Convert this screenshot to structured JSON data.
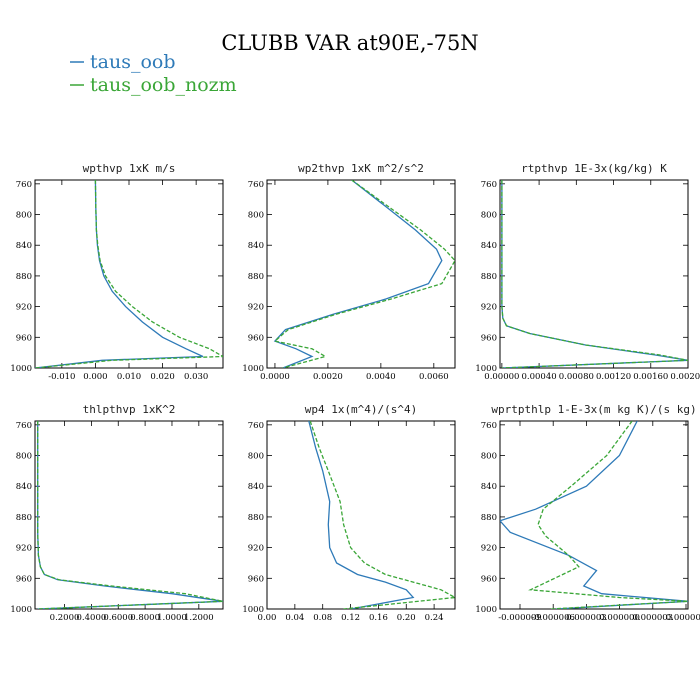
{
  "figure_title": "CLUBB VAR at90E,-75N",
  "legend": [
    {
      "label": "taus_oob",
      "color": "#2e7ab8"
    },
    {
      "label": "taus_oob_nozm",
      "color": "#3aa637"
    }
  ],
  "chart_data": [
    {
      "type": "line",
      "title": "wpthvp  1xK m/s",
      "xticks": [
        "-0.010",
        "0.000",
        "0.010",
        "0.020",
        "0.030"
      ],
      "yticks": [
        "760",
        "800",
        "840",
        "880",
        "920",
        "960",
        "1000"
      ],
      "xlim": [
        -0.018,
        0.038
      ],
      "ylim": [
        1000,
        755
      ],
      "series": [
        {
          "name": "taus_oob",
          "style": "solid",
          "x": [
            0.0,
            0.0001,
            0.0003,
            0.0006,
            0.0012,
            0.0025,
            0.005,
            0.009,
            0.014,
            0.02,
            0.027,
            0.032,
            0.002,
            -0.018
          ],
          "y": [
            755,
            790,
            820,
            840,
            860,
            880,
            900,
            920,
            940,
            960,
            975,
            985,
            990,
            1000
          ]
        },
        {
          "name": "taus_oob_nozm",
          "style": "dashed",
          "x": [
            0.0,
            0.0001,
            0.0003,
            0.0007,
            0.0014,
            0.003,
            0.006,
            0.011,
            0.017,
            0.025,
            0.034,
            0.038,
            0.005,
            -0.018
          ],
          "y": [
            755,
            790,
            820,
            840,
            860,
            880,
            900,
            920,
            940,
            960,
            975,
            985,
            990,
            1000
          ]
        }
      ]
    },
    {
      "type": "line",
      "title": "wp2thvp  1xK m^2/s^2",
      "xticks": [
        "0.0000",
        "0.0020",
        "0.0040",
        "0.0060"
      ],
      "yticks": [
        "760",
        "800",
        "840",
        "880",
        "920",
        "960",
        "1000"
      ],
      "xlim": [
        -0.0003,
        0.0068
      ],
      "ylim": [
        1000,
        755
      ],
      "series": [
        {
          "name": "taus_oob",
          "style": "solid",
          "x": [
            0.0029,
            0.0042,
            0.0053,
            0.0061,
            0.0063,
            0.0058,
            0.0042,
            0.0022,
            0.0004,
            0.0,
            0.0008,
            0.0014,
            0.0003
          ],
          "y": [
            755,
            790,
            820,
            845,
            860,
            890,
            910,
            930,
            950,
            965,
            975,
            985,
            1000
          ]
        },
        {
          "name": "taus_oob_nozm",
          "style": "dashed",
          "x": [
            0.0029,
            0.0043,
            0.0055,
            0.0064,
            0.0068,
            0.0063,
            0.0044,
            0.0023,
            0.0005,
            0.0,
            0.0014,
            0.0019,
            0.0003
          ],
          "y": [
            755,
            790,
            820,
            845,
            860,
            890,
            910,
            930,
            950,
            965,
            975,
            985,
            1000
          ]
        }
      ]
    },
    {
      "type": "line",
      "title": "rtpthvp  1E-3x(kg/kg) K",
      "xticks": [
        "0.00000",
        "0.00040",
        "0.00080",
        "0.00120",
        "0.00160",
        "0.00200"
      ],
      "yticks": [
        "760",
        "800",
        "840",
        "880",
        "920",
        "960",
        "1000"
      ],
      "xlim": [
        -2e-05,
        0.002
      ],
      "ylim": [
        1000,
        755
      ],
      "series": [
        {
          "name": "taus_oob",
          "style": "solid",
          "x": [
            0.0,
            0.0,
            0.0,
            0.0,
            0.0,
            1e-05,
            5e-05,
            0.0003,
            0.0009,
            0.00165,
            0.002,
            0.0
          ],
          "y": [
            755,
            800,
            850,
            900,
            920,
            935,
            945,
            955,
            970,
            983,
            990,
            1000
          ]
        },
        {
          "name": "taus_oob_nozm",
          "style": "dashed",
          "x": [
            0.0,
            0.0,
            0.0,
            0.0,
            0.0,
            1e-05,
            5e-05,
            0.0003,
            0.0009,
            0.0017,
            0.002,
            0.0
          ],
          "y": [
            755,
            800,
            850,
            900,
            920,
            935,
            945,
            955,
            970,
            983,
            990,
            1000
          ]
        }
      ]
    },
    {
      "type": "line",
      "title": "thlpthvp  1xK^2",
      "xticks": [
        "0.2000",
        "0.4000",
        "0.6000",
        "0.8000",
        "1.0000",
        "1.2000"
      ],
      "yticks": [
        "760",
        "800",
        "840",
        "880",
        "920",
        "960",
        "1000"
      ],
      "xlim": [
        -0.02,
        1.38
      ],
      "ylim": [
        1000,
        755
      ],
      "series": [
        {
          "name": "taus_oob",
          "style": "solid",
          "x": [
            0.0,
            0.0,
            0.0,
            0.005,
            0.02,
            0.05,
            0.15,
            0.5,
            1.0,
            1.38,
            0.0
          ],
          "y": [
            755,
            850,
            900,
            930,
            945,
            955,
            962,
            970,
            980,
            990,
            1000
          ]
        },
        {
          "name": "taus_oob_nozm",
          "style": "dashed",
          "x": [
            0.0,
            0.0,
            0.0,
            0.005,
            0.02,
            0.05,
            0.16,
            0.55,
            1.1,
            1.38,
            0.0
          ],
          "y": [
            755,
            850,
            900,
            930,
            945,
            955,
            962,
            970,
            980,
            990,
            1000
          ]
        }
      ]
    },
    {
      "type": "line",
      "title": "wp4  1x(m^4)/(s^4)",
      "xticks": [
        "0.00",
        "0.04",
        "0.08",
        "0.12",
        "0.16",
        "0.20",
        "0.24"
      ],
      "yticks": [
        "760",
        "800",
        "840",
        "880",
        "920",
        "960",
        "1000"
      ],
      "xlim": [
        0.0,
        0.27
      ],
      "ylim": [
        1000,
        755
      ],
      "series": [
        {
          "name": "taus_oob",
          "style": "solid",
          "x": [
            0.06,
            0.07,
            0.08,
            0.09,
            0.088,
            0.09,
            0.1,
            0.13,
            0.17,
            0.2,
            0.21,
            0.12
          ],
          "y": [
            755,
            790,
            820,
            860,
            890,
            920,
            940,
            955,
            965,
            975,
            985,
            1000
          ]
        },
        {
          "name": "taus_oob_nozm",
          "style": "dashed",
          "x": [
            0.062,
            0.075,
            0.088,
            0.105,
            0.11,
            0.12,
            0.14,
            0.17,
            0.21,
            0.25,
            0.27,
            0.11
          ],
          "y": [
            755,
            790,
            820,
            860,
            890,
            920,
            940,
            955,
            965,
            975,
            985,
            1000
          ]
        }
      ]
    },
    {
      "type": "line",
      "title": "wprtpthlp  1-E-3x(m kg K)/(s kg)",
      "xticks": [
        "-0.000009",
        "-0.000006",
        "0.000003",
        "0.000000",
        "0.000003",
        "0.000006"
      ],
      "yticks": [
        "760",
        "800",
        "840",
        "880",
        "920",
        "960",
        "1000"
      ],
      "xlim": [
        -1.2,
        6.2
      ],
      "ylim": [
        1000,
        755
      ],
      "series": [
        {
          "name": "taus_oob",
          "style": "solid",
          "x": [
            4.2,
            3.5,
            2.2,
            0.2,
            -1.2,
            -0.8,
            1.5,
            2.6,
            2.1,
            2.8,
            6.2,
            1.0
          ],
          "y": [
            755,
            800,
            840,
            870,
            885,
            900,
            930,
            950,
            970,
            980,
            990,
            1000
          ]
        },
        {
          "name": "taus_oob_nozm",
          "style": "dashed",
          "x": [
            4.0,
            3.0,
            1.6,
            0.5,
            0.3,
            0.6,
            1.5,
            1.9,
            0.0,
            3.5,
            6.2,
            0.8
          ],
          "y": [
            755,
            800,
            840,
            870,
            890,
            905,
            930,
            945,
            975,
            985,
            990,
            1000
          ]
        }
      ]
    }
  ]
}
